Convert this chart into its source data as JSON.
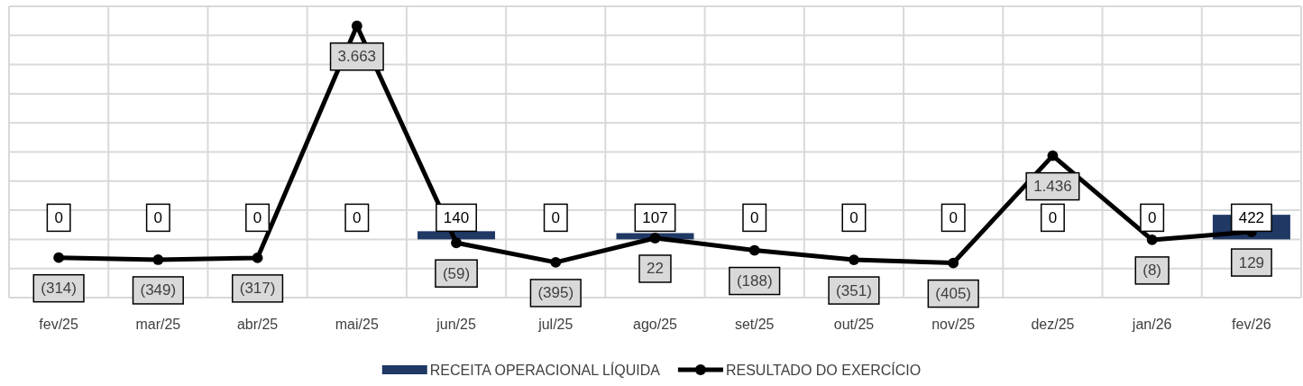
{
  "chart_data": {
    "type": "bar",
    "categories": [
      "fev/25",
      "mar/25",
      "abr/25",
      "mai/25",
      "jun/25",
      "jul/25",
      "ago/25",
      "set/25",
      "out/25",
      "nov/25",
      "dez/25",
      "jan/26",
      "fev/26"
    ],
    "series": [
      {
        "name": "RECEITA OPERACIONAL LÍQUIDA",
        "color": "#1f3864",
        "values": [
          0,
          0,
          0,
          0,
          140,
          0,
          107,
          0,
          0,
          0,
          0,
          0,
          422
        ],
        "value_labels": [
          "0",
          "0",
          "0",
          "0",
          "140",
          "0",
          "107",
          "0",
          "0",
          "0",
          "0",
          "0",
          "422"
        ]
      },
      {
        "name": "RESULTADO DO EXERCÍCIO",
        "type": "line",
        "color": "#000000",
        "values": [
          -314,
          -349,
          -317,
          3663,
          -59,
          -395,
          22,
          -188,
          -351,
          -405,
          1436,
          -8,
          129
        ],
        "value_labels": [
          "(314)",
          "(349)",
          "(317)",
          "3.663",
          "(59)",
          "(395)",
          "22",
          "(188)",
          "(351)",
          "(405)",
          "1.436",
          "(8)",
          "129"
        ]
      }
    ],
    "ylim": [
      -1000,
      4000
    ],
    "yticks": [
      {
        "value": -1000,
        "label": null
      },
      {
        "value": -500,
        "label": null
      },
      {
        "value": 0,
        "label": null
      },
      {
        "value": 500,
        "label": null
      },
      {
        "value": 1000,
        "label": null
      },
      {
        "value": 1500,
        "label": null
      },
      {
        "value": 2000,
        "label": null
      },
      {
        "value": 2500,
        "label": null
      },
      {
        "value": 3000,
        "label": null
      },
      {
        "value": 3500,
        "label": null
      },
      {
        "value": 4000,
        "label": null
      }
    ],
    "tick_labels": "x",
    "grid": true,
    "legend": "bottom",
    "marker": "circle",
    "line_style": "solid"
  }
}
